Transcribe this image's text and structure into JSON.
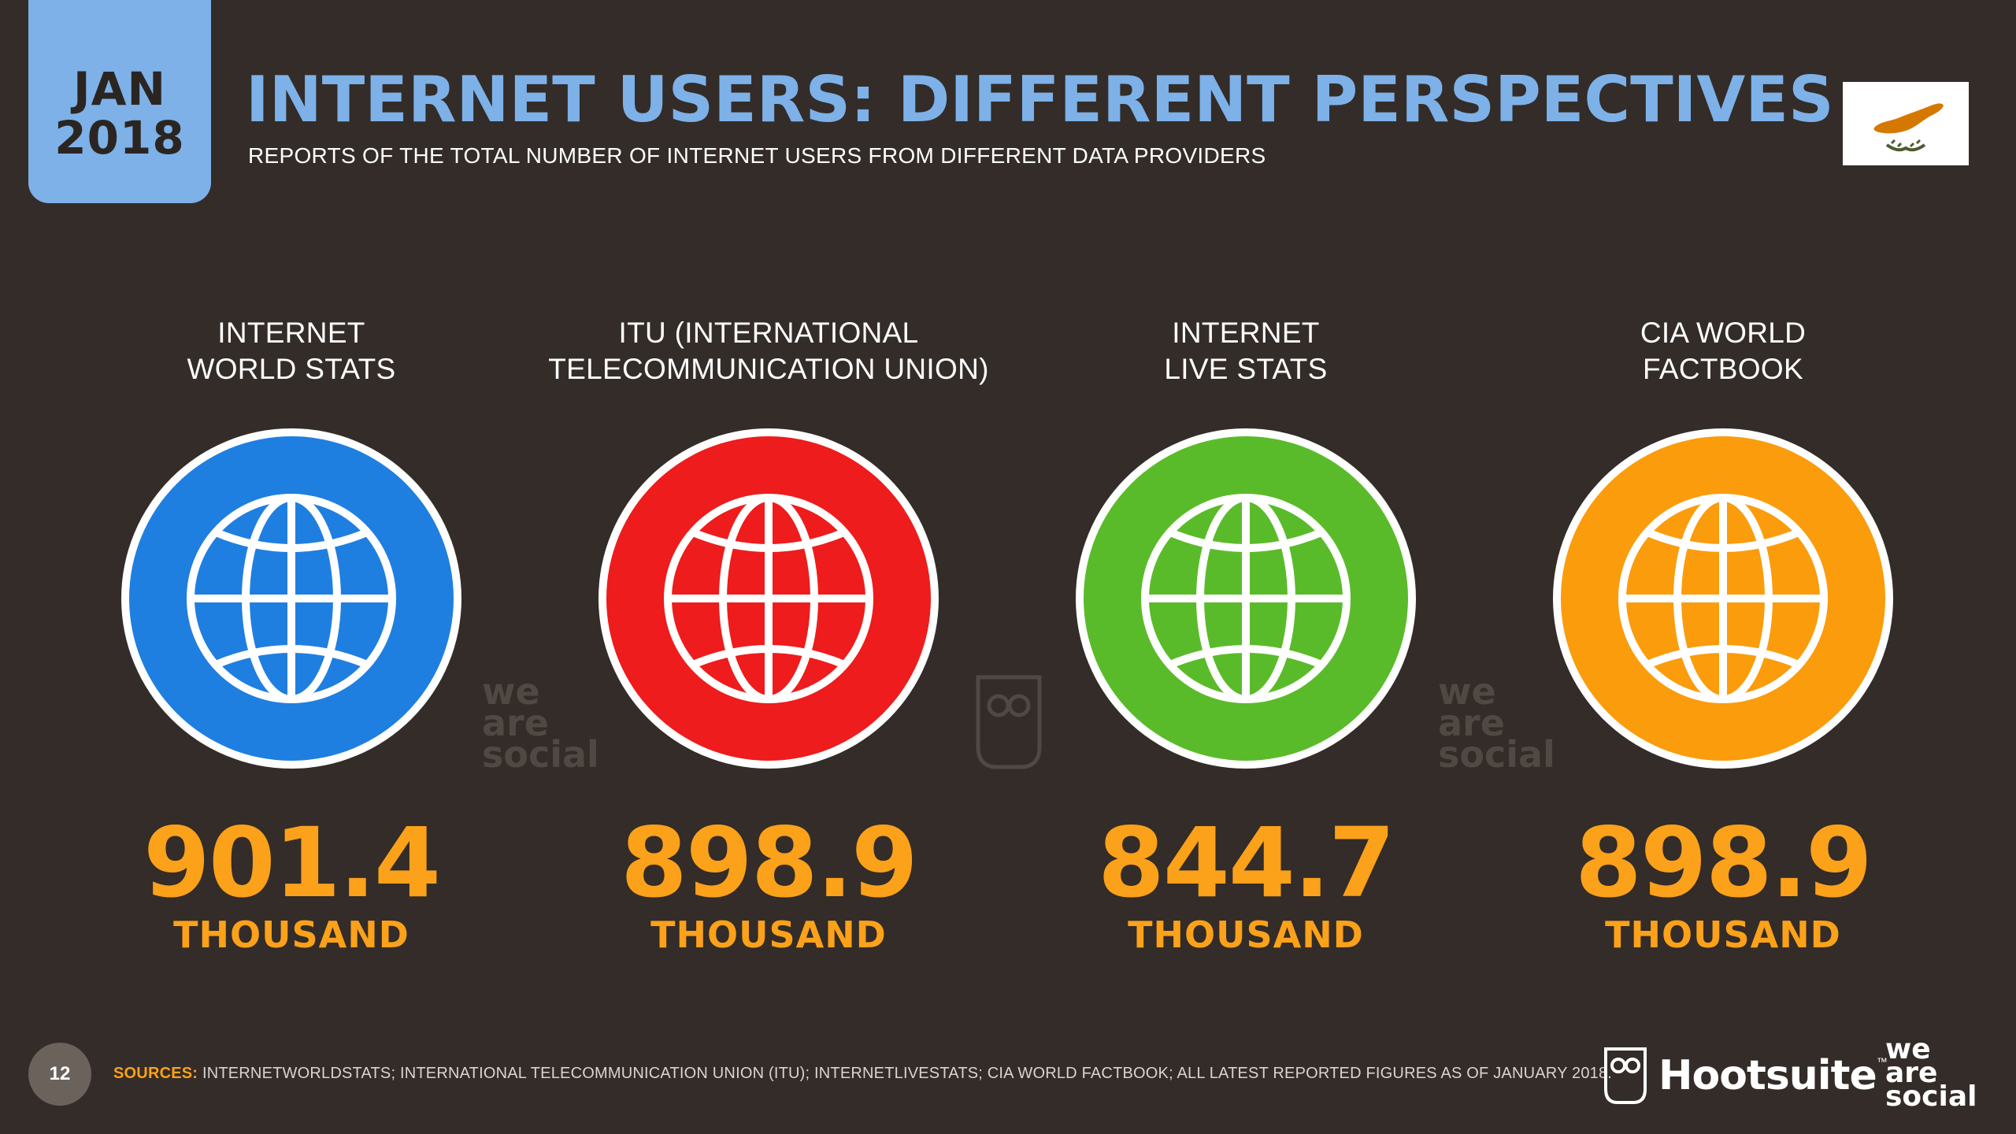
{
  "header": {
    "date_month": "JAN",
    "date_year": "2018",
    "title": "INTERNET USERS: DIFFERENT PERSPECTIVES",
    "subtitle": "REPORTS OF THE TOTAL NUMBER OF INTERNET USERS FROM DIFFERENT DATA PROVIDERS",
    "flag_icon": "cyprus-flag-icon"
  },
  "providers": [
    {
      "label_line1": "INTERNET",
      "label_line2": "WORLD STATS",
      "value": "901.4",
      "unit": "THOUSAND",
      "color": "#1f7fe0",
      "icon": "globe-icon"
    },
    {
      "label_line1": "ITU (INTERNATIONAL",
      "label_line2": "TELECOMMUNICATION UNION)",
      "value": "898.9",
      "unit": "THOUSAND",
      "color": "#ee1c1c",
      "icon": "globe-icon"
    },
    {
      "label_line1": "INTERNET",
      "label_line2": "LIVE STATS",
      "value": "844.7",
      "unit": "THOUSAND",
      "color": "#5abb2a",
      "icon": "globe-icon"
    },
    {
      "label_line1": "CIA WORLD",
      "label_line2": "FACTBOOK",
      "value": "898.9",
      "unit": "THOUSAND",
      "color": "#fb9c0c",
      "icon": "globe-icon"
    }
  ],
  "watermarks": {
    "we": "we",
    "are": "are",
    "social": "social"
  },
  "footer": {
    "page_number": "12",
    "sources_label": "SOURCES:",
    "sources_text": "INTERNETWORLDSTATS; INTERNATIONAL TELECOMMUNICATION UNION (ITU); INTERNETLIVESTATS; CIA WORLD FACTBOOK; ALL LATEST REPORTED FIGURES AS OF JANUARY 2018.",
    "hootsuite_name": "Hootsuite",
    "tm": "™",
    "was_we": "we",
    "was_are": "are",
    "was_social": "social"
  },
  "colors": {
    "background": "#332c28",
    "accent_blue": "#7db1e8",
    "value_orange": "#fba11a"
  }
}
